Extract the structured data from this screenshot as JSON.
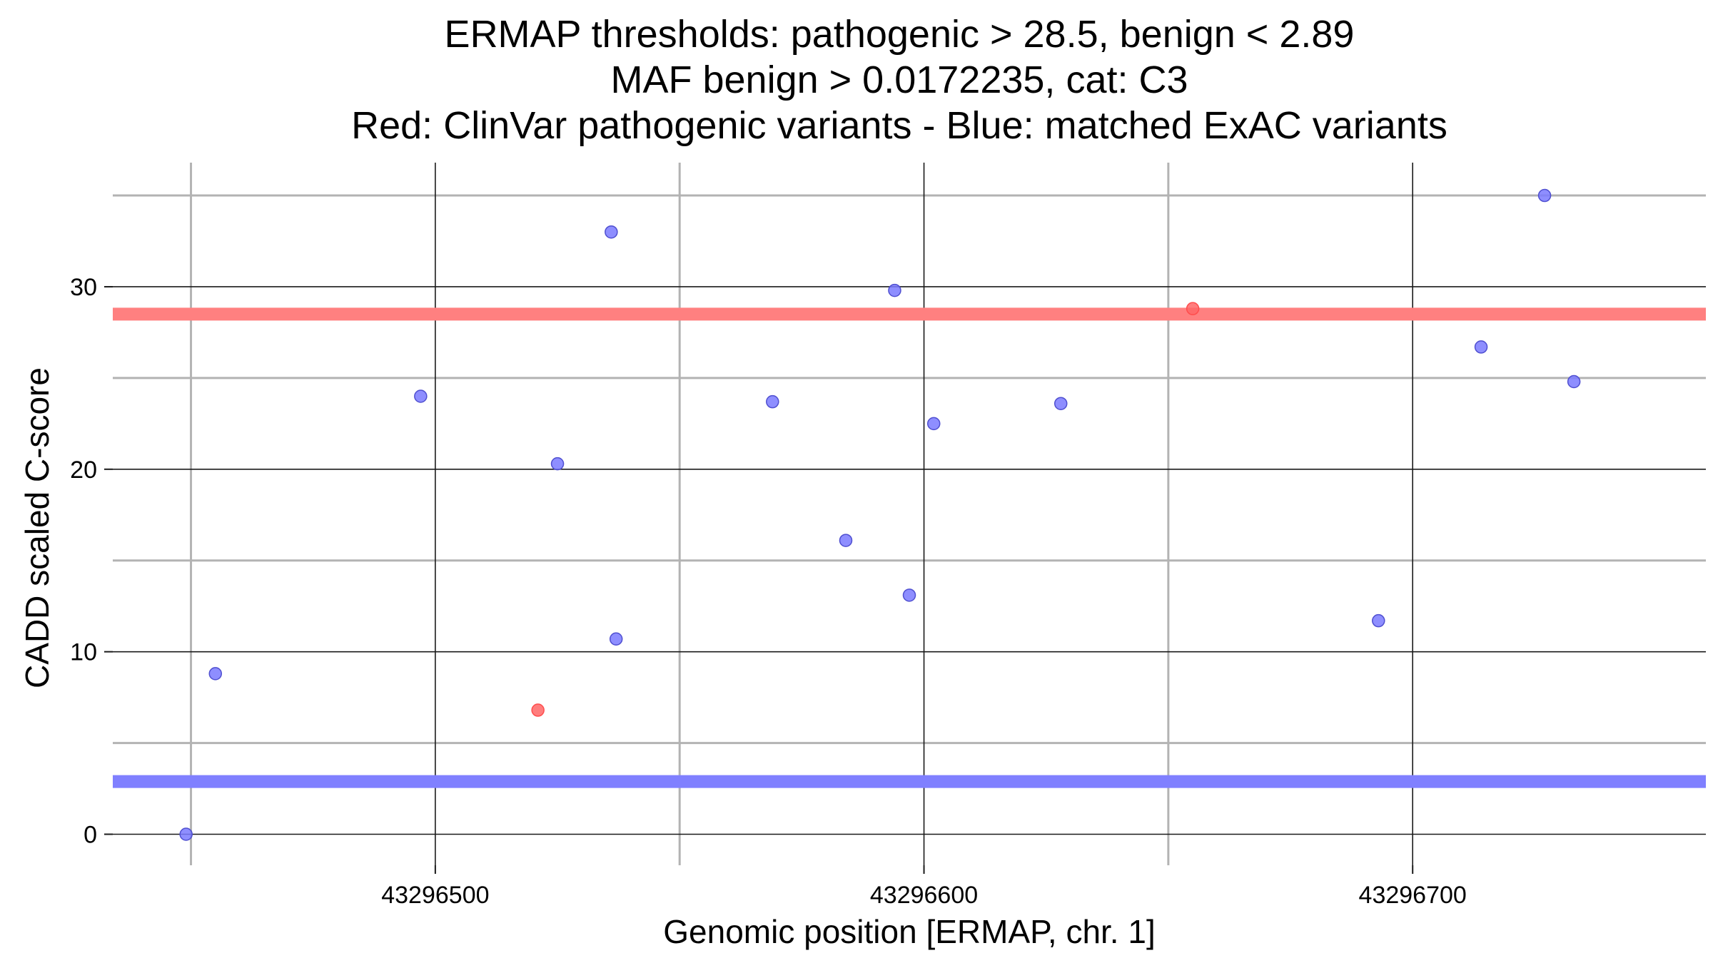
{
  "chart_data": {
    "type": "scatter",
    "title": [
      "ERMAP thresholds: pathogenic > 28.5, benign < 2.89",
      "MAF benign > 0.0172235, cat: C3",
      "Red: ClinVar pathogenic variants - Blue: matched ExAC variants"
    ],
    "xlabel": "Genomic position [ERMAP, chr. 1]",
    "ylabel": "CADD scaled C-score",
    "xlim": [
      43296434,
      43296760
    ],
    "ylim": [
      -1.7,
      36.8
    ],
    "x_major_ticks": [
      43296500,
      43296600,
      43296700
    ],
    "x_tick_labels": [
      "43296500",
      "43296600",
      "43296700"
    ],
    "x_minor_ticks": [
      43296450,
      43296550,
      43296650
    ],
    "y_major_ticks": [
      0,
      10,
      20,
      30
    ],
    "y_tick_labels": [
      "0",
      "10",
      "20",
      "30"
    ],
    "y_minor_ticks": [
      5,
      15,
      25,
      35
    ],
    "grid": true,
    "thresholds": [
      {
        "name": "pathogenic",
        "value": 28.5,
        "color": "#ff8080"
      },
      {
        "name": "benign",
        "value": 2.89,
        "color": "#8080ff"
      }
    ],
    "series": [
      {
        "name": "ClinVar pathogenic variants",
        "color": "#ff6666",
        "stroke": "#ff4d4d",
        "x": [
          43296521,
          43296655
        ],
        "y": [
          6.8,
          28.8
        ]
      },
      {
        "name": "matched ExAC variants",
        "color": "#7a7aff",
        "stroke": "#4f4fd0",
        "x": [
          43296449,
          43296455,
          43296497,
          43296525,
          43296536,
          43296537,
          43296569,
          43296584,
          43296594,
          43296597,
          43296602,
          43296628,
          43296693,
          43296714,
          43296727,
          43296733
        ],
        "y": [
          0,
          8.8,
          24.0,
          20.3,
          33.0,
          10.7,
          23.7,
          16.1,
          29.8,
          13.1,
          22.5,
          23.6,
          11.7,
          26.7,
          35.0,
          24.8
        ]
      }
    ]
  }
}
